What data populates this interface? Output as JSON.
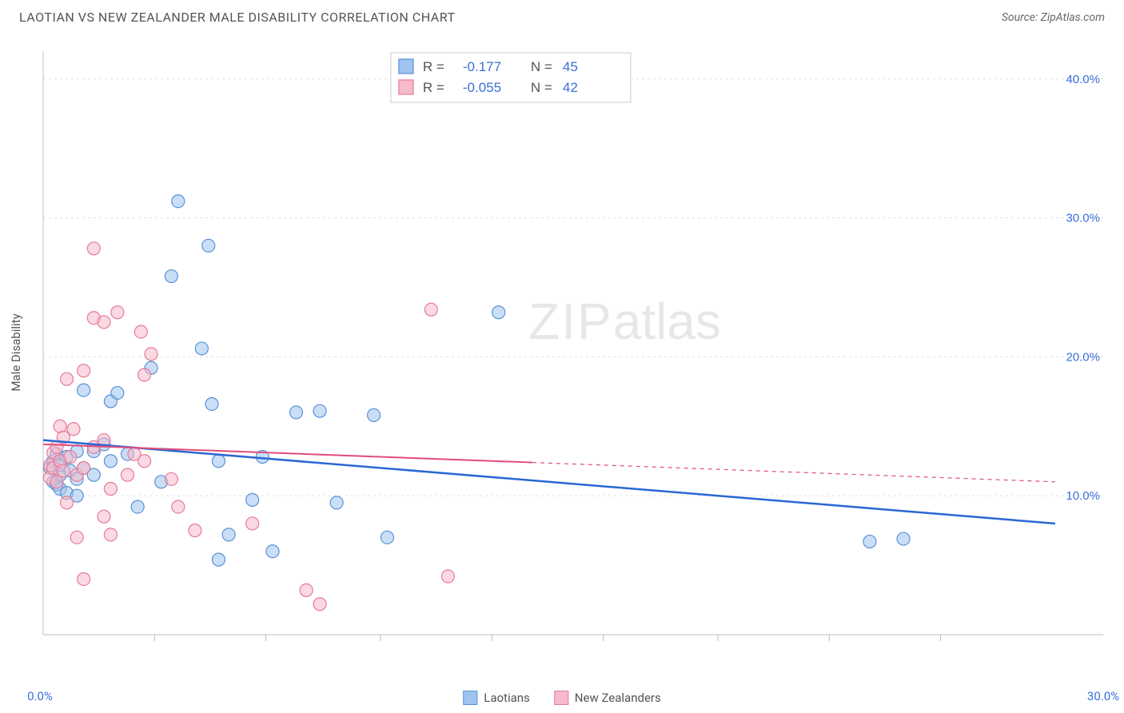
{
  "header": {
    "title": "LAOTIAN VS NEW ZEALANDER MALE DISABILITY CORRELATION CHART",
    "source": "Source: ZipAtlas.com"
  },
  "watermark": {
    "zip": "ZIP",
    "atlas": "atlas"
  },
  "ylabel": "Male Disability",
  "chart": {
    "type": "scatter",
    "background_color": "#ffffff",
    "grid_color": "#e0e0e0",
    "axis_color": "#cccccc",
    "tick_color": "#bbbbbb",
    "xlim": [
      0,
      30
    ],
    "ylim": [
      0,
      42
    ],
    "x_ticks": [
      0,
      30
    ],
    "x_tick_labels": [
      "0.0%",
      "30.0%"
    ],
    "y_ticks": [
      10,
      20,
      30,
      40
    ],
    "y_tick_labels": [
      "10.0%",
      "20.0%",
      "30.0%",
      "40.0%"
    ],
    "y_label_color": "#3b6fd6",
    "x_label_color": "#3b6fd6",
    "minor_x_ticks": [
      3.3,
      6.6,
      10,
      13.3,
      16.6,
      20,
      23.3,
      26.6
    ],
    "marker_radius": 8,
    "marker_opacity": 0.55,
    "marker_stroke_width": 1.2,
    "series": [
      {
        "name": "Laotians",
        "fill": "#9fc4f0",
        "stroke": "#5a91d6",
        "line_color": "#2a67d4",
        "line_width": 2.5,
        "R": "-0.177",
        "N": "45",
        "trend": {
          "x1": 0,
          "y1": 14.0,
          "x2": 30,
          "y2": 8.0,
          "solid_until_x": 30
        },
        "points": [
          [
            0.2,
            12.0
          ],
          [
            0.3,
            11.0
          ],
          [
            0.3,
            12.5
          ],
          [
            0.4,
            13.0
          ],
          [
            0.4,
            10.8
          ],
          [
            0.5,
            11.5
          ],
          [
            0.5,
            10.5
          ],
          [
            0.5,
            12.2
          ],
          [
            0.7,
            12.8
          ],
          [
            0.7,
            10.2
          ],
          [
            0.8,
            11.8
          ],
          [
            1.0,
            13.2
          ],
          [
            1.0,
            10.0
          ],
          [
            1.0,
            11.2
          ],
          [
            1.2,
            12.0
          ],
          [
            1.2,
            17.6
          ],
          [
            1.5,
            13.2
          ],
          [
            1.5,
            11.5
          ],
          [
            1.8,
            13.7
          ],
          [
            2.0,
            12.5
          ],
          [
            2.0,
            16.8
          ],
          [
            2.2,
            17.4
          ],
          [
            2.5,
            13.0
          ],
          [
            2.8,
            9.2
          ],
          [
            3.2,
            19.2
          ],
          [
            3.5,
            11.0
          ],
          [
            3.8,
            25.8
          ],
          [
            4.0,
            31.2
          ],
          [
            4.7,
            20.6
          ],
          [
            4.9,
            28.0
          ],
          [
            5.0,
            16.6
          ],
          [
            5.2,
            12.5
          ],
          [
            5.2,
            5.4
          ],
          [
            5.5,
            7.2
          ],
          [
            6.2,
            9.7
          ],
          [
            6.5,
            12.8
          ],
          [
            6.8,
            6.0
          ],
          [
            7.5,
            16.0
          ],
          [
            8.2,
            16.1
          ],
          [
            8.7,
            9.5
          ],
          [
            9.8,
            15.8
          ],
          [
            10.2,
            7.0
          ],
          [
            13.5,
            23.2
          ],
          [
            24.5,
            6.7
          ],
          [
            25.5,
            6.9
          ]
        ]
      },
      {
        "name": "New Zealanders",
        "fill": "#f6bacb",
        "stroke": "#e67a9a",
        "line_color": "#e04d7a",
        "line_width": 2,
        "R": "-0.055",
        "N": "42",
        "trend": {
          "x1": 0,
          "y1": 13.7,
          "x2": 30,
          "y2": 11.0,
          "solid_until_x": 14.5
        },
        "points": [
          [
            0.2,
            12.2
          ],
          [
            0.2,
            11.3
          ],
          [
            0.3,
            13.1
          ],
          [
            0.3,
            12.0
          ],
          [
            0.4,
            11.0
          ],
          [
            0.4,
            13.5
          ],
          [
            0.5,
            12.5
          ],
          [
            0.5,
            15.0
          ],
          [
            0.6,
            14.2
          ],
          [
            0.6,
            11.8
          ],
          [
            0.7,
            18.4
          ],
          [
            0.7,
            9.5
          ],
          [
            0.8,
            12.8
          ],
          [
            0.9,
            14.8
          ],
          [
            1.0,
            11.5
          ],
          [
            1.0,
            7.0
          ],
          [
            1.2,
            19.0
          ],
          [
            1.2,
            12.0
          ],
          [
            1.5,
            13.5
          ],
          [
            1.5,
            22.8
          ],
          [
            1.5,
            27.8
          ],
          [
            1.8,
            22.5
          ],
          [
            1.8,
            14.0
          ],
          [
            1.8,
            8.5
          ],
          [
            2.0,
            7.2
          ],
          [
            2.0,
            10.5
          ],
          [
            2.2,
            23.2
          ],
          [
            2.5,
            11.5
          ],
          [
            2.7,
            13.0
          ],
          [
            2.9,
            21.8
          ],
          [
            3.0,
            18.7
          ],
          [
            3.0,
            12.5
          ],
          [
            3.2,
            20.2
          ],
          [
            3.8,
            11.2
          ],
          [
            4.0,
            9.2
          ],
          [
            4.5,
            7.5
          ],
          [
            6.2,
            8.0
          ],
          [
            7.8,
            3.2
          ],
          [
            8.2,
            2.2
          ],
          [
            11.5,
            23.4
          ],
          [
            12.0,
            4.2
          ],
          [
            1.2,
            4.0
          ]
        ]
      }
    ],
    "stats_box": {
      "border_color": "#cccccc",
      "bg_color": "#ffffff",
      "label_color": "#555555",
      "value_color": "#3b6fd6",
      "font_size": 17
    },
    "bottom_legend": [
      {
        "label": "Laotians",
        "fill": "#9fc4f0",
        "stroke": "#5a91d6"
      },
      {
        "label": "New Zealanders",
        "fill": "#f6bacb",
        "stroke": "#e67a9a"
      }
    ]
  }
}
